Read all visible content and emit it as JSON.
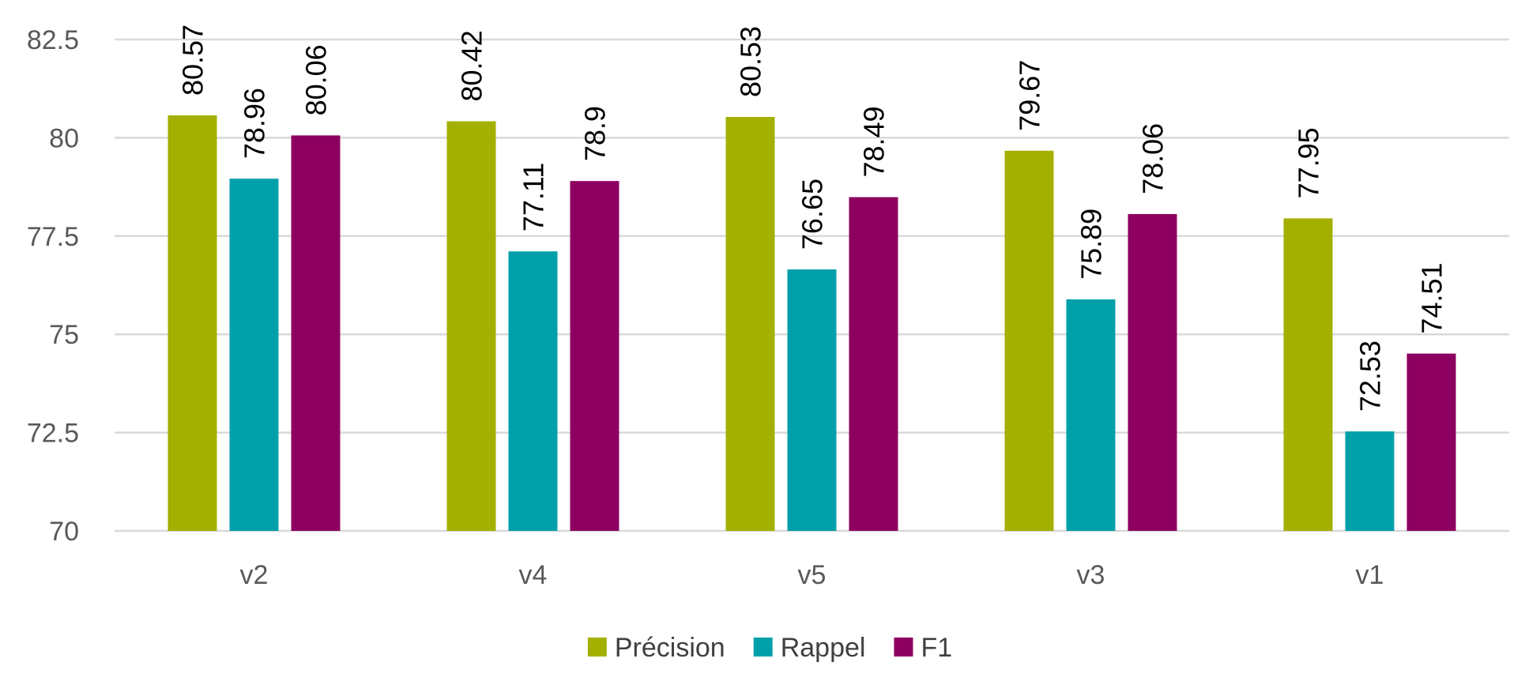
{
  "chart_data": {
    "type": "bar",
    "categories": [
      "v2",
      "v4",
      "v5",
      "v3",
      "v1"
    ],
    "series": [
      {
        "name": "Précision",
        "color": "#a3b000",
        "values": [
          80.57,
          80.42,
          80.53,
          79.67,
          77.95
        ]
      },
      {
        "name": "Rappel",
        "color": "#00a0aa",
        "values": [
          78.96,
          77.11,
          76.65,
          75.89,
          72.53
        ]
      },
      {
        "name": "F1",
        "color": "#8e0060",
        "values": [
          80.06,
          78.9,
          78.49,
          78.06,
          74.51
        ]
      }
    ],
    "ylim": [
      70,
      82.5
    ],
    "yticks": [
      "70",
      "72.5",
      "75",
      "77.5",
      "80",
      "82.5"
    ],
    "grid": true,
    "data_labels": true,
    "legend_position": "bottom-center"
  }
}
